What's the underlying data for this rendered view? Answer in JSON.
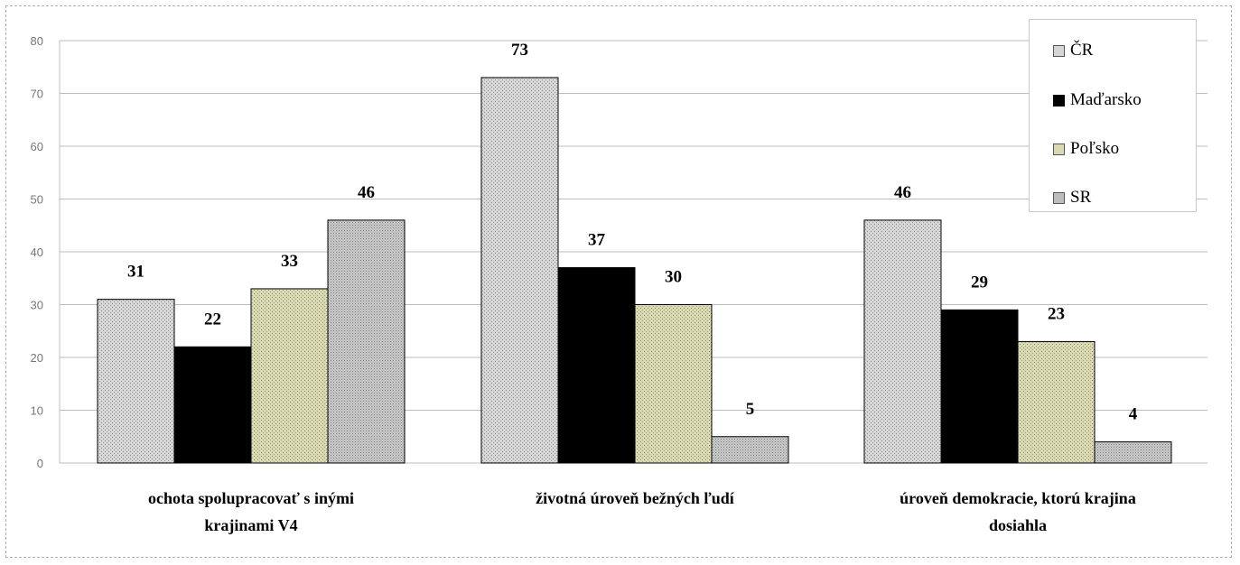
{
  "chart_data": {
    "type": "bar",
    "categories": [
      [
        "ochota spolupracovať s inými",
        "krajinami V4"
      ],
      [
        "životná úroveň bežných ľudí"
      ],
      [
        "úroveň demokracie, ktorú krajina",
        "dosiahla"
      ]
    ],
    "series": [
      {
        "name": "ČR",
        "color": "#d4d4d4",
        "pattern": "dots-dark",
        "values": [
          31,
          73,
          46
        ]
      },
      {
        "name": "Maďarsko",
        "color": "#000000",
        "pattern": "solid",
        "values": [
          22,
          37,
          29
        ]
      },
      {
        "name": "Poľsko",
        "color": "#d8d8b0",
        "pattern": "dots-dark",
        "values": [
          33,
          30,
          23
        ]
      },
      {
        "name": "SR",
        "color": "#c8c8c8",
        "pattern": "dots-dark",
        "values": [
          46,
          5,
          4
        ]
      }
    ],
    "ylim": [
      0,
      80
    ],
    "yticks": [
      "0",
      "10",
      "20",
      "30",
      "40",
      "50",
      "60",
      "70",
      "80"
    ],
    "grid": true,
    "legend_position": "top-right",
    "show_value_labels": true
  }
}
